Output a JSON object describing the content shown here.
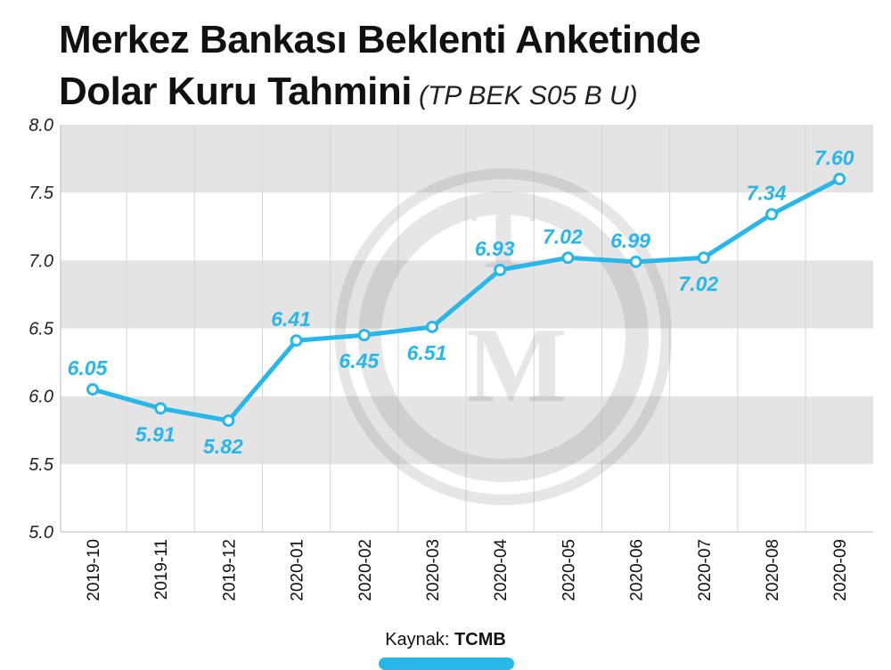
{
  "title": {
    "line1": "Merkez Bankası Beklenti Anketinde",
    "line2": "Dolar Kuru Tahmini",
    "code": "(TP BEK S05 B U)"
  },
  "source": {
    "label": "Kaynak:",
    "name": "TCMB"
  },
  "colors": {
    "line": "#29b6e8",
    "band": "#e4e4e4",
    "label": "#29b6e8"
  },
  "watermark_icon": "tcmb-logo-watermark",
  "chart_data": {
    "type": "line",
    "title": "Merkez Bankası Beklenti Anketinde Dolar Kuru Tahmini",
    "xlabel": "",
    "ylabel": "",
    "categories": [
      "2019-10",
      "2019-11",
      "2019-12",
      "2020-01",
      "2020-02",
      "2020-03",
      "2020-04",
      "2020-05",
      "2020-06",
      "2020-07",
      "2020-08",
      "2020-09"
    ],
    "values": [
      6.05,
      5.91,
      5.82,
      6.41,
      6.45,
      6.51,
      6.93,
      7.02,
      6.99,
      7.02,
      7.34,
      7.6
    ],
    "value_labels": [
      "6.05",
      "5.91",
      "5.82",
      "6.41",
      "6.45",
      "6.51",
      "6.93",
      "7.02",
      "6.99",
      "7.02",
      "7.34",
      "7.60"
    ],
    "label_position": [
      "above",
      "below",
      "below",
      "above",
      "below",
      "below",
      "above",
      "above",
      "above",
      "below",
      "above",
      "above"
    ],
    "ylim": [
      5.0,
      8.0
    ],
    "yticks": [
      5.0,
      5.5,
      6.0,
      6.5,
      7.0,
      7.5,
      8.0
    ],
    "ytick_labels": [
      "5.0",
      "5.5",
      "6.0",
      "6.5",
      "7.0",
      "7.5",
      "8.0"
    ],
    "grid": "alternating horizontal bands",
    "legend": "none"
  }
}
